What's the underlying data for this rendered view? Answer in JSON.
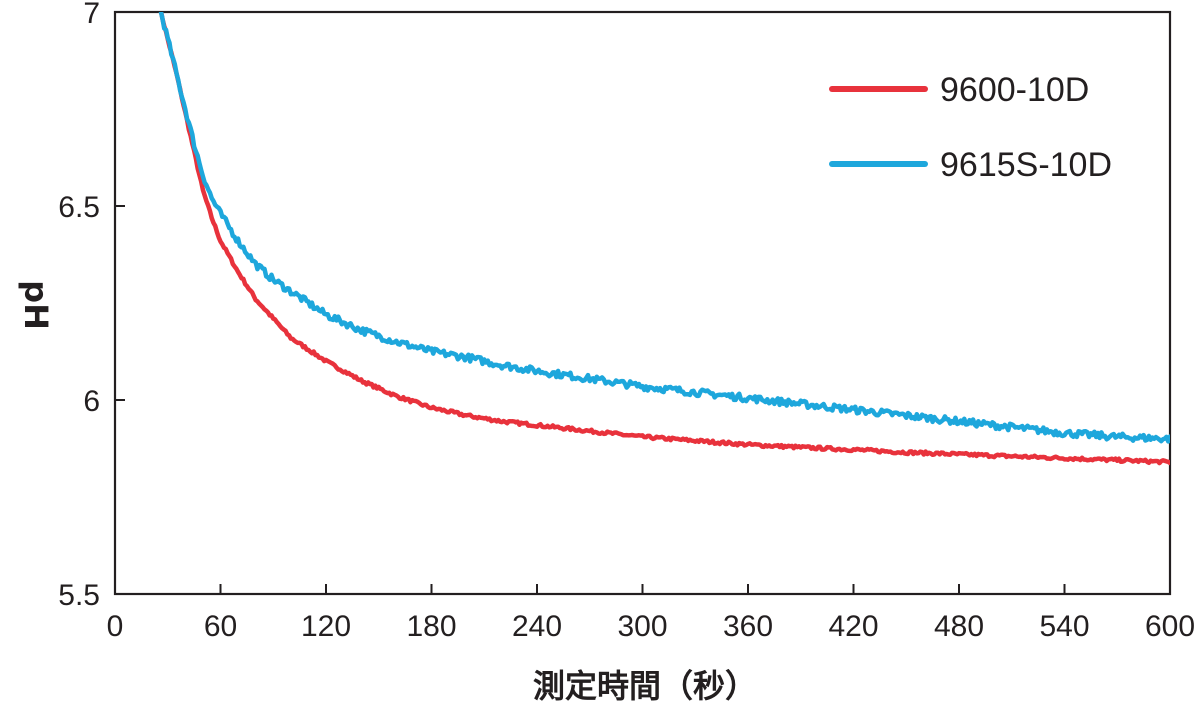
{
  "chart_data": {
    "type": "line",
    "title": "",
    "xlabel": "測定時間（秒）",
    "ylabel": "pH",
    "xlim": [
      0,
      600
    ],
    "ylim": [
      5.5,
      7
    ],
    "xticks": [
      "0",
      "60",
      "120",
      "180",
      "240",
      "300",
      "360",
      "420",
      "480",
      "540",
      "600"
    ],
    "yticks": [
      "5.5",
      "6",
      "6.5",
      "7"
    ],
    "grid": false,
    "legend_position": "top-right",
    "series": [
      {
        "name": "9600-10D",
        "color": "#e8323c",
        "x": [
          25,
          30,
          35,
          40,
          45,
          50,
          55,
          60,
          70,
          80,
          90,
          100,
          110,
          120,
          140,
          160,
          180,
          200,
          220,
          240,
          270,
          300,
          330,
          360,
          390,
          420,
          450,
          480,
          510,
          540,
          570,
          600
        ],
        "y": [
          7.02,
          6.93,
          6.84,
          6.74,
          6.64,
          6.54,
          6.47,
          6.41,
          6.33,
          6.26,
          6.21,
          6.16,
          6.13,
          6.1,
          6.05,
          6.01,
          5.98,
          5.96,
          5.945,
          5.935,
          5.92,
          5.905,
          5.895,
          5.885,
          5.878,
          5.872,
          5.865,
          5.86,
          5.855,
          5.85,
          5.845,
          5.84
        ]
      },
      {
        "name": "9615S-10D",
        "color": "#1ea7dc",
        "x": [
          25,
          30,
          35,
          40,
          45,
          50,
          55,
          60,
          70,
          80,
          90,
          100,
          110,
          120,
          140,
          160,
          180,
          200,
          220,
          240,
          270,
          300,
          330,
          360,
          390,
          420,
          450,
          480,
          510,
          540,
          570,
          600
        ],
        "y": [
          7.02,
          6.93,
          6.84,
          6.75,
          6.66,
          6.58,
          6.52,
          6.48,
          6.41,
          6.35,
          6.31,
          6.28,
          6.25,
          6.22,
          6.18,
          6.15,
          6.125,
          6.11,
          6.09,
          6.075,
          6.055,
          6.035,
          6.02,
          6.005,
          5.99,
          5.975,
          5.96,
          5.945,
          5.93,
          5.915,
          5.905,
          5.9
        ]
      }
    ]
  }
}
